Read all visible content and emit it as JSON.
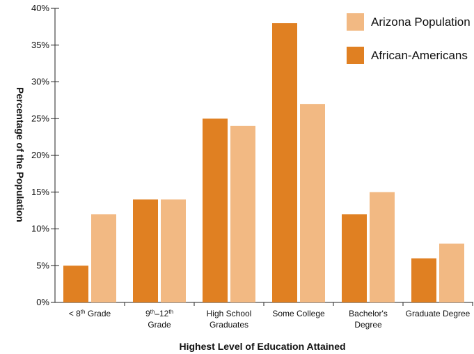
{
  "chart_data": {
    "type": "bar",
    "xlabel": "Highest Level of Education Attained",
    "ylabel": "Percentage of the Population",
    "ylim": [
      0,
      40
    ],
    "yticks": [
      "0%",
      "5%",
      "10%",
      "15%",
      "20%",
      "25%",
      "30%",
      "35%",
      "40%"
    ],
    "grid": false,
    "legend_position": "top-right",
    "categories": [
      [
        "< 8",
        "th",
        " Grade"
      ],
      [
        "9",
        "th",
        "–12",
        "th",
        "|Grade"
      ],
      [
        "High School",
        "Graduates"
      ],
      [
        "Some College"
      ],
      [
        "Bachelor's",
        "Degree"
      ],
      [
        "Graduate Degree"
      ]
    ],
    "categories_plain": [
      "< 8th Grade",
      "9th–12th Grade",
      "High School Graduates",
      "Some College",
      "Bachelor's Degree",
      "Graduate Degree"
    ],
    "series": [
      {
        "name": "African-Americans",
        "color": "#e08022",
        "values": [
          5,
          14,
          25,
          38,
          12,
          6
        ]
      },
      {
        "name": "Arizona Population",
        "color": "#f2b983",
        "values": [
          12,
          14,
          24,
          27,
          15,
          8
        ]
      }
    ],
    "legend_order": [
      "Arizona Population",
      "African-Americans"
    ]
  }
}
